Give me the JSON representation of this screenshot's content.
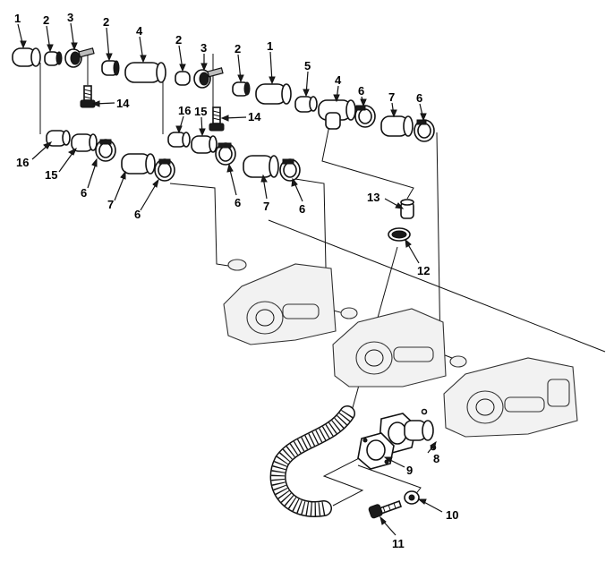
{
  "callouts": [
    {
      "id": "c1a",
      "text": "1"
    },
    {
      "id": "c2a",
      "text": "2"
    },
    {
      "id": "c3a",
      "text": "3"
    },
    {
      "id": "c2b",
      "text": "2"
    },
    {
      "id": "c4a",
      "text": "4"
    },
    {
      "id": "c2c",
      "text": "2"
    },
    {
      "id": "c3b",
      "text": "3"
    },
    {
      "id": "c2d",
      "text": "2"
    },
    {
      "id": "c1b",
      "text": "1"
    },
    {
      "id": "c5",
      "text": "5"
    },
    {
      "id": "c4b",
      "text": "4"
    },
    {
      "id": "c6a",
      "text": "6"
    },
    {
      "id": "c7a",
      "text": "7"
    },
    {
      "id": "c6b",
      "text": "6"
    },
    {
      "id": "c14a",
      "text": "14"
    },
    {
      "id": "c16a",
      "text": "16"
    },
    {
      "id": "c15a",
      "text": "15"
    },
    {
      "id": "c14b",
      "text": "14"
    },
    {
      "id": "c16b",
      "text": "16"
    },
    {
      "id": "c15b",
      "text": "15"
    },
    {
      "id": "c6c",
      "text": "6"
    },
    {
      "id": "c7b",
      "text": "7"
    },
    {
      "id": "c6d",
      "text": "6"
    },
    {
      "id": "c6e",
      "text": "6"
    },
    {
      "id": "c7c",
      "text": "7"
    },
    {
      "id": "c6f",
      "text": "6"
    },
    {
      "id": "c13",
      "text": "13"
    },
    {
      "id": "c12",
      "text": "12"
    },
    {
      "id": "c8",
      "text": "8"
    },
    {
      "id": "c9",
      "text": "9"
    },
    {
      "id": "c10",
      "text": "10"
    },
    {
      "id": "c11",
      "text": "11"
    }
  ]
}
